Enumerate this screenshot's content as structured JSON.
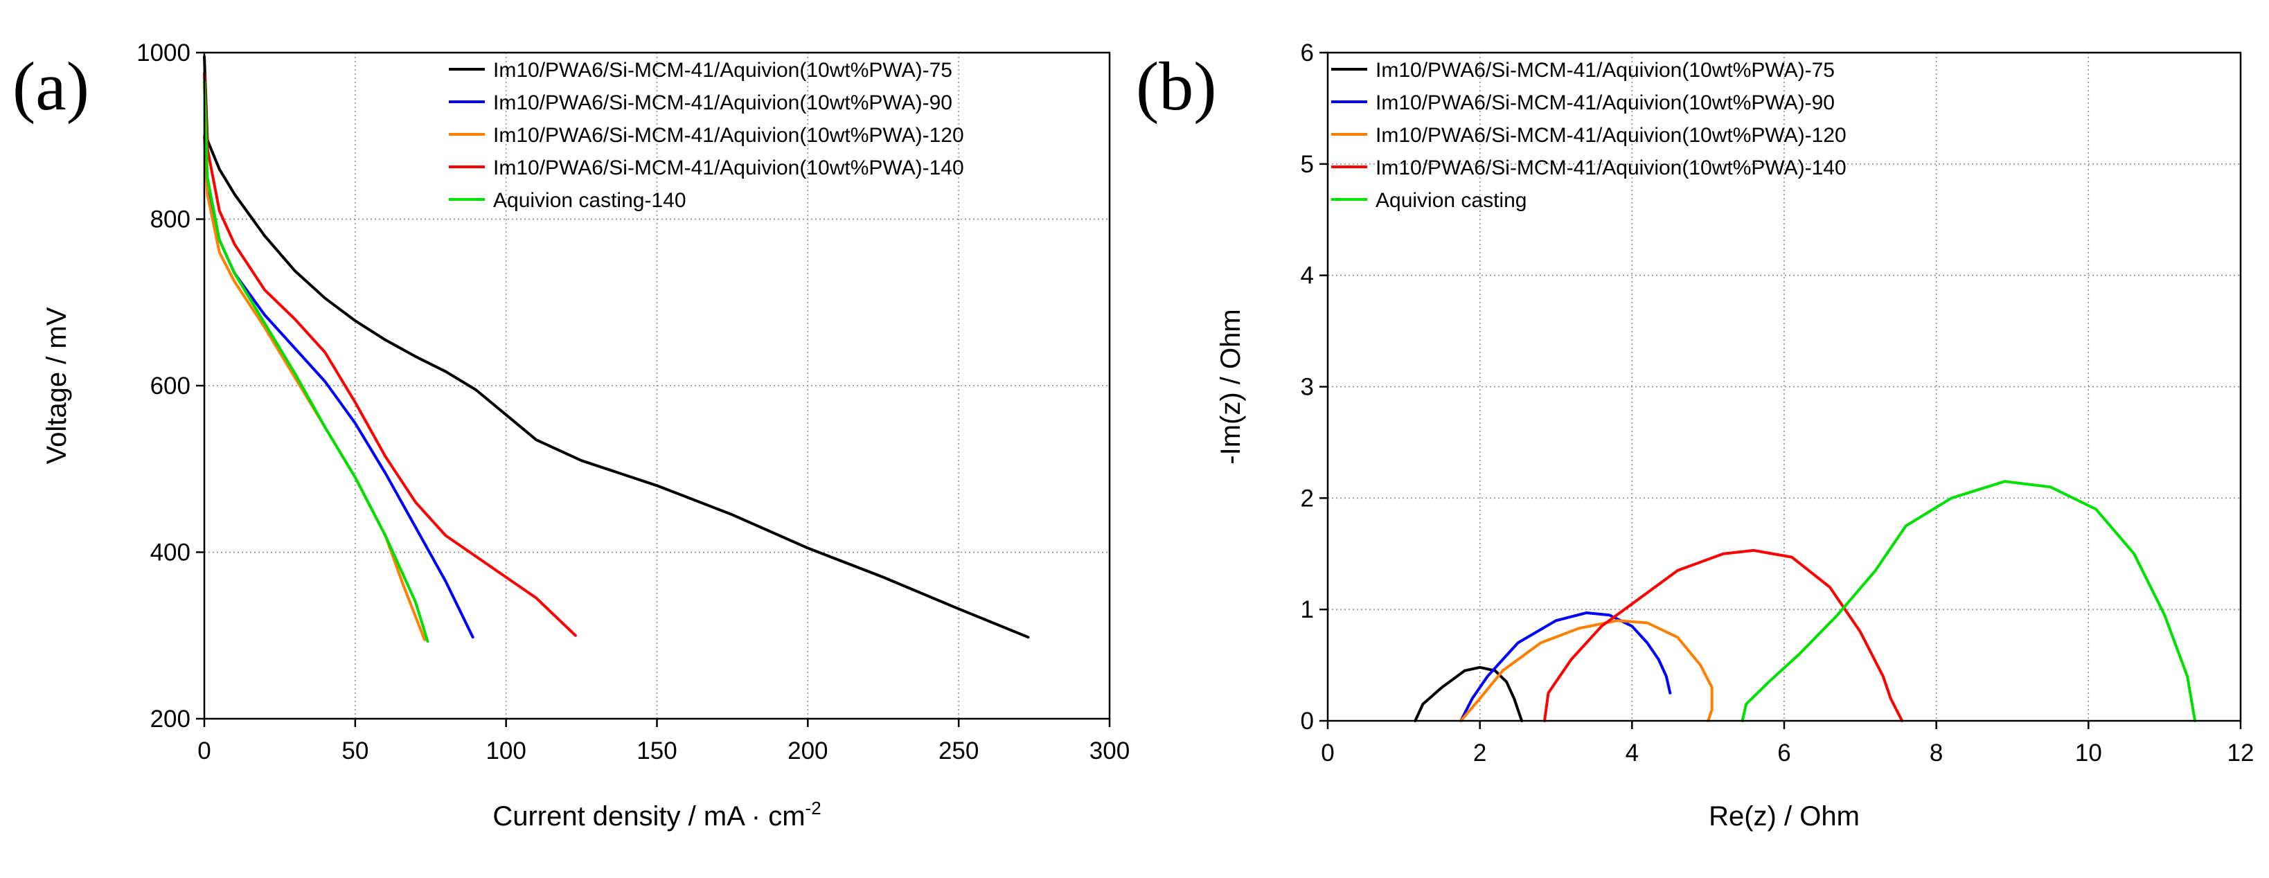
{
  "chart_data": [
    {
      "type": "line",
      "panel_label": "(a)",
      "title": "",
      "xlabel": "Current density / mA · cm",
      "xlabel_superscript": "-2",
      "ylabel": "Voltage / mV",
      "xlim": [
        0,
        300
      ],
      "ylim": [
        200,
        1000
      ],
      "xticks": [
        0,
        50,
        100,
        150,
        200,
        250,
        300
      ],
      "yticks": [
        200,
        400,
        600,
        800,
        1000
      ],
      "grid": true,
      "legend_position": "top-right",
      "series": [
        {
          "name": "Im10/PWA6/Si-MCM-41/Aquivion(10wt%PWA)-75",
          "color": "#000000",
          "x": [
            0,
            1,
            5,
            10,
            20,
            30,
            40,
            50,
            60,
            70,
            80,
            90,
            100,
            110,
            125,
            150,
            175,
            200,
            225,
            250,
            273
          ],
          "y": [
            995,
            895,
            860,
            830,
            780,
            738,
            705,
            678,
            655,
            635,
            617,
            595,
            565,
            535,
            510,
            480,
            445,
            405,
            370,
            332,
            298
          ]
        },
        {
          "name": "Im10/PWA6/Si-MCM-41/Aquivion(10wt%PWA)-90",
          "color": "#0000ff",
          "x": [
            0,
            1,
            5,
            10,
            20,
            30,
            40,
            50,
            60,
            70,
            80,
            89
          ],
          "y": [
            900,
            840,
            775,
            735,
            685,
            645,
            605,
            555,
            495,
            430,
            365,
            298
          ]
        },
        {
          "name": "Im10/PWA6/Si-MCM-41/Aquivion(10wt%PWA)-120",
          "color": "#ff8000",
          "x": [
            0,
            1,
            5,
            10,
            20,
            30,
            40,
            50,
            60,
            66,
            73
          ],
          "y": [
            900,
            830,
            760,
            725,
            670,
            610,
            550,
            490,
            420,
            360,
            295
          ]
        },
        {
          "name": "Im10/PWA6/Si-MCM-41/Aquivion(10wt%PWA)-140",
          "color": "#ff0000",
          "x": [
            0,
            1,
            5,
            10,
            20,
            30,
            40,
            50,
            60,
            70,
            80,
            90,
            100,
            110,
            123
          ],
          "y": [
            975,
            885,
            810,
            770,
            715,
            680,
            640,
            580,
            515,
            460,
            420,
            395,
            370,
            345,
            300
          ]
        },
        {
          "name": "Aquivion casting-140",
          "color": "#00e000",
          "x": [
            0,
            1,
            5,
            10,
            20,
            30,
            40,
            50,
            60,
            70,
            74
          ],
          "y": [
            965,
            850,
            775,
            735,
            675,
            615,
            550,
            490,
            420,
            340,
            293
          ]
        }
      ]
    },
    {
      "type": "line",
      "panel_label": "(b)",
      "title": "",
      "xlabel": "Re(z) / Ohm",
      "ylabel": "-Im(z) / Ohm",
      "xlim": [
        0,
        12
      ],
      "ylim": [
        0,
        6
      ],
      "xticks": [
        0,
        2,
        4,
        6,
        8,
        10,
        12
      ],
      "yticks": [
        0,
        1,
        2,
        3,
        4,
        5,
        6
      ],
      "grid": true,
      "legend_position": "top-left",
      "series": [
        {
          "name": "Im10/PWA6/Si-MCM-41/Aquivion(10wt%PWA)-75",
          "color": "#000000",
          "x": [
            1.15,
            1.25,
            1.5,
            1.8,
            2.0,
            2.2,
            2.35,
            2.45,
            2.5,
            2.55
          ],
          "y": [
            0.0,
            0.15,
            0.3,
            0.45,
            0.48,
            0.45,
            0.35,
            0.2,
            0.1,
            0.0
          ]
        },
        {
          "name": "Im10/PWA6/Si-MCM-41/Aquivion(10wt%PWA)-90",
          "color": "#0000ff",
          "x": [
            1.75,
            1.9,
            2.1,
            2.5,
            3.0,
            3.4,
            3.7,
            4.0,
            4.2,
            4.35,
            4.45,
            4.5
          ],
          "y": [
            0.0,
            0.2,
            0.4,
            0.7,
            0.9,
            0.97,
            0.95,
            0.85,
            0.7,
            0.55,
            0.4,
            0.25
          ]
        },
        {
          "name": "Im10/PWA6/Si-MCM-41/Aquivion(10wt%PWA)-120",
          "color": "#ff8000",
          "x": [
            1.75,
            2.0,
            2.3,
            2.8,
            3.3,
            3.8,
            4.2,
            4.6,
            4.9,
            5.05,
            5.05,
            5.0
          ],
          "y": [
            0.0,
            0.2,
            0.45,
            0.7,
            0.83,
            0.9,
            0.88,
            0.75,
            0.5,
            0.3,
            0.1,
            0.0
          ]
        },
        {
          "name": "Im10/PWA6/Si-MCM-41/Aquivion(10wt%PWA)-140",
          "color": "#ff0000",
          "x": [
            2.85,
            2.9,
            3.2,
            3.6,
            4.1,
            4.6,
            5.2,
            5.6,
            6.1,
            6.6,
            7.0,
            7.3,
            7.4,
            7.55
          ],
          "y": [
            0.0,
            0.25,
            0.55,
            0.85,
            1.1,
            1.35,
            1.5,
            1.53,
            1.47,
            1.2,
            0.8,
            0.4,
            0.2,
            0.0
          ]
        },
        {
          "name": "Aquivion casting",
          "color": "#00e000",
          "x": [
            5.45,
            5.5,
            5.8,
            6.2,
            6.7,
            7.2,
            7.6,
            8.2,
            8.9,
            9.5,
            10.1,
            10.6,
            11.0,
            11.3,
            11.4
          ],
          "y": [
            0.0,
            0.15,
            0.35,
            0.6,
            0.95,
            1.35,
            1.75,
            2.0,
            2.15,
            2.1,
            1.9,
            1.5,
            0.95,
            0.4,
            0.0
          ]
        }
      ]
    }
  ]
}
